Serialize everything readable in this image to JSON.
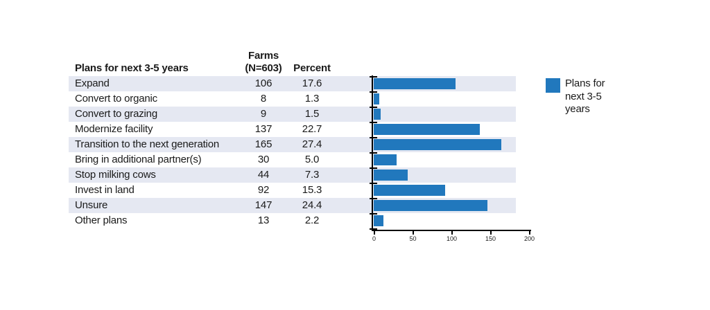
{
  "figure": {
    "header": {
      "plans_col": "Plans for next 3-5 years",
      "farms_col_line1": "Farms",
      "farms_col_line2": "(N=603)",
      "percent_col": "Percent"
    },
    "legend": {
      "label": "Plans for next 3-5 years"
    }
  },
  "table": {
    "rows": [
      {
        "label": "Expand",
        "farms": "106",
        "percent": "17.6"
      },
      {
        "label": "Convert to organic",
        "farms": "8",
        "percent": "1.3"
      },
      {
        "label": "Convert to grazing",
        "farms": "9",
        "percent": "1.5"
      },
      {
        "label": "Modernize facility",
        "farms": "137",
        "percent": "22.7"
      },
      {
        "label": "Transition to the next generation",
        "farms": "165",
        "percent": "27.4"
      },
      {
        "label": "Bring in additional partner(s)",
        "farms": "30",
        "percent": "5.0"
      },
      {
        "label": "Stop milking cows",
        "farms": "44",
        "percent": "7.3"
      },
      {
        "label": "Invest in land",
        "farms": "92",
        "percent": "15.3"
      },
      {
        "label": "Unsure",
        "farms": "147",
        "percent": "24.4"
      },
      {
        "label": "Other plans",
        "farms": "13",
        "percent": "2.2"
      }
    ]
  },
  "chart_data": {
    "type": "bar",
    "orientation": "horizontal",
    "title": "",
    "categories": [
      "Expand",
      "Convert to organic",
      "Convert to grazing",
      "Modernize facility",
      "Transition to the next generation",
      "Bring in additional partner(s)",
      "Stop milking cows",
      "Invest in land",
      "Unsure",
      "Other plans"
    ],
    "series": [
      {
        "name": "Plans for next 3-5 years",
        "values": [
          106,
          8,
          9,
          137,
          165,
          30,
          44,
          92,
          147,
          13
        ]
      }
    ],
    "xlabel": "",
    "ylabel": "",
    "xlim": [
      0,
      200
    ],
    "xticks": [
      0,
      50,
      100,
      150,
      200
    ],
    "grid": false,
    "legend_position": "right"
  },
  "colors": {
    "bar": "#2178BD",
    "row_band": "#E5E8F2",
    "text": "#1A1A1A",
    "axis": "#000000",
    "background": "#FFFFFF"
  }
}
